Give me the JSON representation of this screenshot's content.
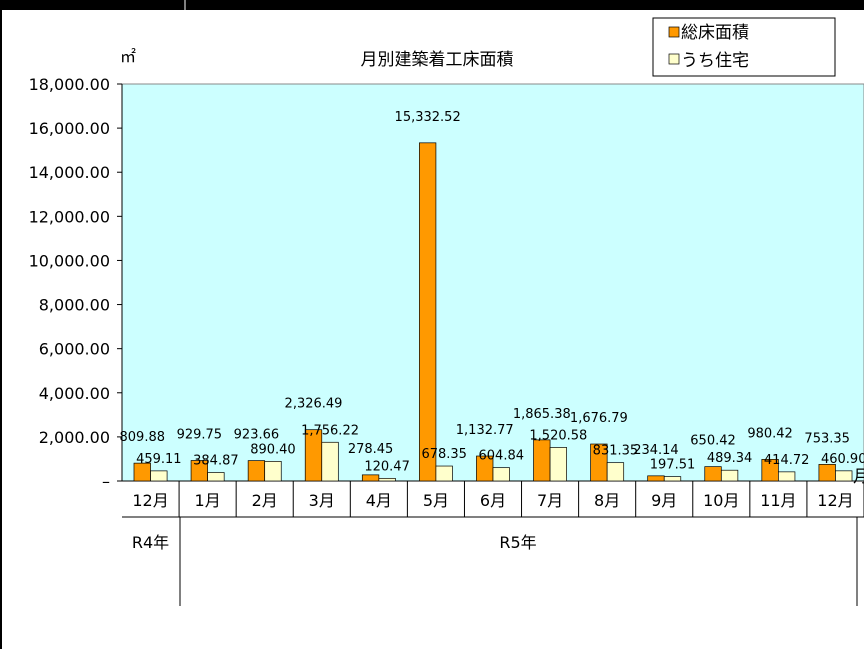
{
  "chart_data": {
    "type": "bar",
    "title": "月別建築着工床面積",
    "unit": "㎡",
    "x_suffix": "月",
    "categories": [
      "12月",
      "1月",
      "2月",
      "3月",
      "4月",
      "5月",
      "6月",
      "7月",
      "8月",
      "9月",
      "10月",
      "11月",
      "12月"
    ],
    "groups": [
      {
        "label": "R4年"
      },
      {
        "label": "R5年"
      }
    ],
    "series": [
      {
        "name": "総床面積",
        "color": "#FF9900",
        "values": [
          809.88,
          929.75,
          923.66,
          2326.49,
          278.45,
          15332.52,
          1132.77,
          1865.38,
          1676.79,
          234.14,
          650.42,
          980.42,
          753.35
        ]
      },
      {
        "name": "うち住宅",
        "color": "#FFFFCC",
        "values": [
          459.11,
          384.87,
          890.4,
          1756.22,
          120.47,
          678.35,
          604.84,
          1520.58,
          831.35,
          197.51,
          489.34,
          414.72,
          460.9
        ]
      }
    ],
    "value_labels": [
      [
        "809.88",
        "929.75",
        "923.66",
        "2,326.49",
        "278.45",
        "15,332.52",
        "1,132.77",
        "1,865.38",
        "1,676.79",
        "234.14",
        "650.42",
        "980.42",
        "753.35"
      ],
      [
        "459.11",
        "384.87",
        "890.40",
        "1,756.22",
        "120.47",
        "678.35",
        "604.84",
        "1,520.58",
        "831.35",
        "197.51",
        "489.34",
        "414.72",
        "460.90"
      ]
    ],
    "y_ticks": [
      "–",
      "2,000.00",
      "4,000.00",
      "6,000.00",
      "8,000.00",
      "10,000.00",
      "12,000.00",
      "14,000.00",
      "16,000.00",
      "18,000.00"
    ],
    "ylim": [
      0,
      18000
    ],
    "plot_background": "#CCFFFF",
    "legend_position": "top-right",
    "grid": false
  }
}
